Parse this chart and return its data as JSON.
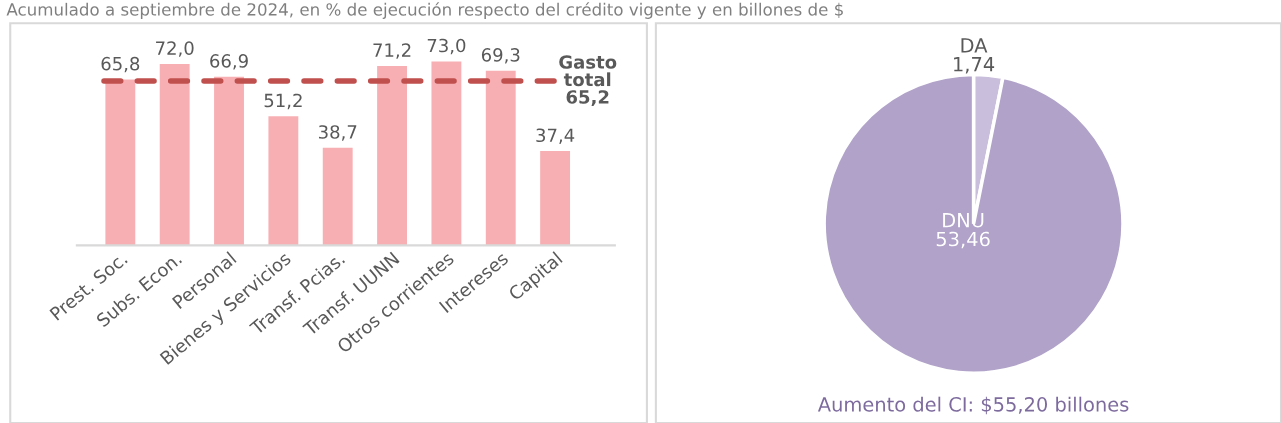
{
  "chart_data": [
    {
      "type": "bar",
      "title": "Acumulado a septiembre de 2024, en % de ejecución respecto del crédito vigente y en billones de $",
      "categories": [
        "Prest. Soc.",
        "Subs. Econ.",
        "Personal",
        "Bienes y Servicios",
        "Transf. Pcias.",
        "Transf. UUNN",
        "Otros corrientes",
        "Intereses",
        "Capital"
      ],
      "values": [
        65.8,
        72.0,
        66.9,
        51.2,
        38.7,
        71.2,
        73.0,
        69.3,
        37.4
      ],
      "value_labels": [
        "65,8",
        "72,0",
        "66,9",
        "51,2",
        "38,7",
        "71,2",
        "73,0",
        "69,3",
        "37,4"
      ],
      "color": "#f8afb3",
      "tick_labels": "x",
      "grid": false,
      "ref_lines": [
        {
          "axis": "y",
          "value": 65.2,
          "label": "Gasto\ntotal\n65,2",
          "color": "#c0504d",
          "line_style": "dashed"
        }
      ]
    },
    {
      "type": "pie",
      "categories": [
        "DA",
        "DNU"
      ],
      "values": [
        1.74,
        53.46
      ],
      "value_labels": [
        "1,74",
        "53,46"
      ],
      "colors": [
        "#c9bedb",
        "#b0a2c8"
      ],
      "annotations": [
        "Aumento del CI: $55,20 billones"
      ]
    }
  ]
}
